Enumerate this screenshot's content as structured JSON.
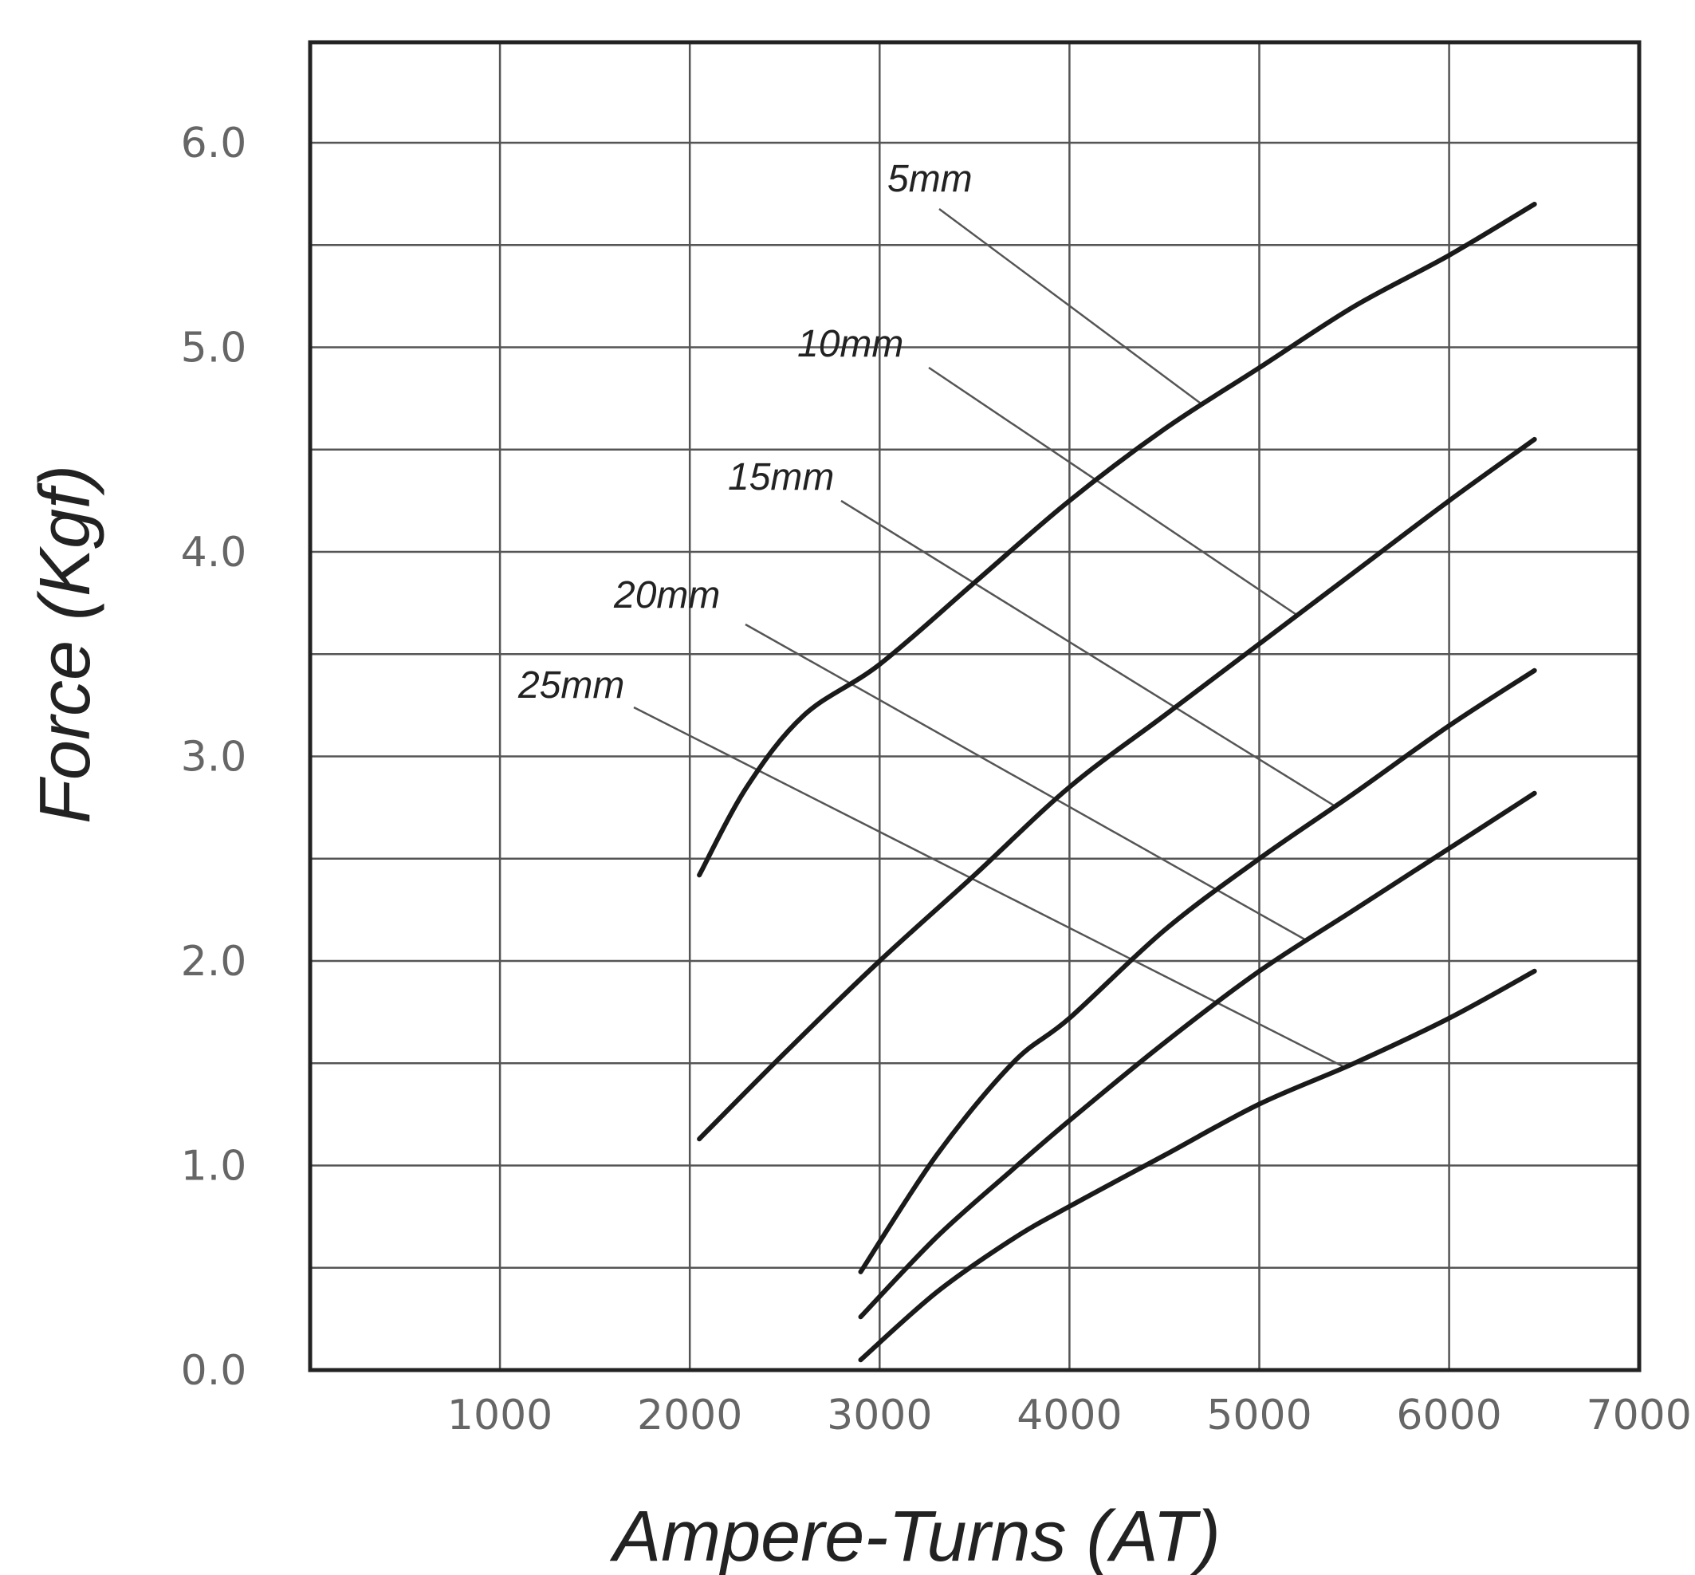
{
  "chart_data": {
    "type": "line",
    "xlabel": "Ampere-Turns (AT)",
    "ylabel": "Force (Kgf)",
    "xlim": [
      0,
      7000
    ],
    "ylim": [
      0,
      6.5
    ],
    "x_ticks": [
      1000,
      2000,
      3000,
      4000,
      5000,
      6000,
      7000
    ],
    "x_tick_labels": [
      "1000",
      "2000",
      "3000",
      "4000",
      "5000",
      "6000",
      "7000"
    ],
    "y_ticks": [
      0,
      1,
      2,
      3,
      4,
      5,
      6
    ],
    "y_tick_labels": [
      "0.0",
      "1.0",
      "2.0",
      "3.0",
      "4.0",
      "5.0",
      "6.0"
    ],
    "grid": true,
    "series": [
      {
        "name": "5mm",
        "points": [
          [
            2050,
            2.42
          ],
          [
            2300,
            2.85
          ],
          [
            2600,
            3.2
          ],
          [
            3000,
            3.45
          ],
          [
            3500,
            3.85
          ],
          [
            4000,
            4.25
          ],
          [
            4500,
            4.6
          ],
          [
            5000,
            4.9
          ],
          [
            5500,
            5.2
          ],
          [
            6000,
            5.45
          ],
          [
            6450,
            5.7
          ]
        ]
      },
      {
        "name": "10mm",
        "points": [
          [
            2050,
            1.13
          ],
          [
            2500,
            1.55
          ],
          [
            3000,
            2.0
          ],
          [
            3500,
            2.42
          ],
          [
            4000,
            2.85
          ],
          [
            4500,
            3.2
          ],
          [
            5000,
            3.55
          ],
          [
            5500,
            3.9
          ],
          [
            6000,
            4.25
          ],
          [
            6450,
            4.55
          ]
        ]
      },
      {
        "name": "15mm",
        "points": [
          [
            2900,
            0.48
          ],
          [
            3300,
            1.05
          ],
          [
            3700,
            1.5
          ],
          [
            4000,
            1.72
          ],
          [
            4500,
            2.15
          ],
          [
            5000,
            2.5
          ],
          [
            5500,
            2.82
          ],
          [
            6000,
            3.15
          ],
          [
            6450,
            3.42
          ]
        ]
      },
      {
        "name": "20mm",
        "points": [
          [
            2900,
            0.26
          ],
          [
            3300,
            0.65
          ],
          [
            3700,
            0.98
          ],
          [
            4000,
            1.22
          ],
          [
            4500,
            1.6
          ],
          [
            5000,
            1.95
          ],
          [
            5500,
            2.25
          ],
          [
            6000,
            2.55
          ],
          [
            6450,
            2.82
          ]
        ]
      },
      {
        "name": "25mm",
        "points": [
          [
            2900,
            0.05
          ],
          [
            3300,
            0.38
          ],
          [
            3700,
            0.64
          ],
          [
            4000,
            0.8
          ],
          [
            4500,
            1.05
          ],
          [
            5000,
            1.3
          ],
          [
            5500,
            1.5
          ],
          [
            6000,
            1.72
          ],
          [
            6450,
            1.95
          ]
        ]
      }
    ]
  }
}
